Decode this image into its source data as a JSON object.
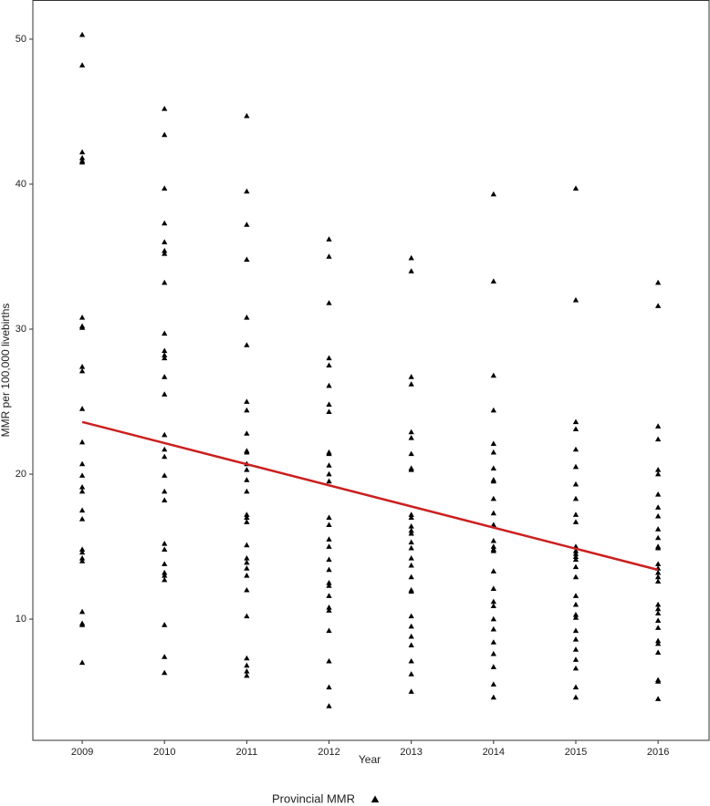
{
  "chart_data": {
    "type": "scatter",
    "xlabel": "Year",
    "ylabel": "MMR per 100,000 livebirths",
    "xlim": [
      2008.4,
      2016.62
    ],
    "ylim": [
      1.64,
      52.7
    ],
    "xticks": [
      2009,
      2010,
      2011,
      2012,
      2013,
      2014,
      2015,
      2016
    ],
    "yticks": [
      10,
      20,
      30,
      40,
      50
    ],
    "grid": false,
    "legend": "bottom",
    "series": [
      {
        "name": "Provincial MMR",
        "type": "scatter",
        "marker": "triangle",
        "color": "#000000",
        "x": [
          2009,
          2009,
          2009,
          2009,
          2009,
          2009,
          2009,
          2009,
          2009,
          2009,
          2009,
          2009,
          2009,
          2009,
          2009,
          2009,
          2009,
          2009,
          2009,
          2009,
          2009,
          2009,
          2009,
          2009,
          2009,
          2009,
          2009,
          2010,
          2010,
          2010,
          2010,
          2010,
          2010,
          2010,
          2010,
          2010,
          2010,
          2010,
          2010,
          2010,
          2010,
          2010,
          2010,
          2010,
          2010,
          2010,
          2010,
          2010,
          2010,
          2010,
          2010,
          2010,
          2010,
          2010,
          2010,
          2010,
          2011,
          2011,
          2011,
          2011,
          2011,
          2011,
          2011,
          2011,
          2011,
          2011,
          2011,
          2011,
          2011,
          2011,
          2011,
          2011,
          2011,
          2011,
          2011,
          2011,
          2011,
          2011,
          2011,
          2011,
          2011,
          2011,
          2011,
          2011,
          2011,
          2012,
          2012,
          2012,
          2012,
          2012,
          2012,
          2012,
          2012,
          2012,
          2012,
          2012,
          2012,
          2012,
          2012,
          2012,
          2012,
          2012,
          2012,
          2012,
          2012,
          2012,
          2012,
          2012,
          2012,
          2012,
          2012,
          2012,
          2012,
          2013,
          2013,
          2013,
          2013,
          2013,
          2013,
          2013,
          2013,
          2013,
          2013,
          2013,
          2013,
          2013,
          2013,
          2013,
          2013,
          2013,
          2013,
          2013,
          2013,
          2013,
          2013,
          2013,
          2013,
          2013,
          2013,
          2013,
          2013,
          2014,
          2014,
          2014,
          2014,
          2014,
          2014,
          2014,
          2014,
          2014,
          2014,
          2014,
          2014,
          2014,
          2014,
          2014,
          2014,
          2014,
          2014,
          2014,
          2014,
          2014,
          2014,
          2014,
          2014,
          2014,
          2014,
          2014,
          2015,
          2015,
          2015,
          2015,
          2015,
          2015,
          2015,
          2015,
          2015,
          2015,
          2015,
          2015,
          2015,
          2015,
          2015,
          2015,
          2015,
          2015,
          2015,
          2015,
          2015,
          2015,
          2015,
          2015,
          2015,
          2015,
          2015,
          2015,
          2016,
          2016,
          2016,
          2016,
          2016,
          2016,
          2016,
          2016,
          2016,
          2016,
          2016,
          2016,
          2016,
          2016,
          2016,
          2016,
          2016,
          2016,
          2016,
          2016,
          2016,
          2016,
          2016,
          2016,
          2016,
          2016,
          2016,
          2016,
          2016
        ],
        "values": [
          50.3,
          48.2,
          42.2,
          41.8,
          41.6,
          41.5,
          30.8,
          30.2,
          30.1,
          27.4,
          27.1,
          24.5,
          22.2,
          20.7,
          19.9,
          19.1,
          18.8,
          17.5,
          16.9,
          14.8,
          14.6,
          14.2,
          14.0,
          10.5,
          9.7,
          9.6,
          7.0,
          45.2,
          43.4,
          39.7,
          37.3,
          36.0,
          35.4,
          35.2,
          33.2,
          29.7,
          28.5,
          28.2,
          28.0,
          26.7,
          25.5,
          22.7,
          21.7,
          21.2,
          19.9,
          18.8,
          18.2,
          15.2,
          14.8,
          13.8,
          13.2,
          13.0,
          12.7,
          9.6,
          7.4,
          6.3,
          44.7,
          39.5,
          37.2,
          34.8,
          30.8,
          28.9,
          25.0,
          24.4,
          22.8,
          21.6,
          21.5,
          20.7,
          20.3,
          19.6,
          18.8,
          17.2,
          17.0,
          16.7,
          15.1,
          14.2,
          13.9,
          13.5,
          13.0,
          12.0,
          10.2,
          7.3,
          6.8,
          6.4,
          6.1,
          36.2,
          35.0,
          31.8,
          28.0,
          27.5,
          26.1,
          24.8,
          24.3,
          21.5,
          21.4,
          20.6,
          20.0,
          19.5,
          17.0,
          16.5,
          15.5,
          15.0,
          14.1,
          13.4,
          12.5,
          12.3,
          11.6,
          10.8,
          10.6,
          9.2,
          7.1,
          5.3,
          4.0,
          34.9,
          34.0,
          26.7,
          26.2,
          22.9,
          22.5,
          21.4,
          20.4,
          20.3,
          17.2,
          17.0,
          16.4,
          16.1,
          15.9,
          15.3,
          14.9,
          14.2,
          13.7,
          12.9,
          12.0,
          11.9,
          10.2,
          9.5,
          8.8,
          8.2,
          7.1,
          6.2,
          5.0,
          39.3,
          33.3,
          26.8,
          24.4,
          22.1,
          21.5,
          20.4,
          19.6,
          19.5,
          18.3,
          17.3,
          16.5,
          15.4,
          15.0,
          14.8,
          14.7,
          13.3,
          12.1,
          11.2,
          10.9,
          10.0,
          9.3,
          8.4,
          7.6,
          6.7,
          5.5,
          4.6,
          39.7,
          32.0,
          23.6,
          23.1,
          21.7,
          20.5,
          19.3,
          18.3,
          17.2,
          16.7,
          15.0,
          14.7,
          14.5,
          14.3,
          14.1,
          13.6,
          12.9,
          11.6,
          11.0,
          10.3,
          10.1,
          9.2,
          8.6,
          7.9,
          7.2,
          6.6,
          5.3,
          4.6,
          33.2,
          31.6,
          23.3,
          22.4,
          20.3,
          20.0,
          18.6,
          17.7,
          17.1,
          16.2,
          15.6,
          15.0,
          14.9,
          13.8,
          13.5,
          13.2,
          12.9,
          12.6,
          11.0,
          10.7,
          10.4,
          9.9,
          9.4,
          8.5,
          8.3,
          7.7,
          5.8,
          5.7,
          4.5
        ]
      },
      {
        "type": "line",
        "color": "#cc1f1f",
        "x": [
          2009,
          2016
        ],
        "values": [
          23.6,
          13.4
        ]
      }
    ]
  }
}
